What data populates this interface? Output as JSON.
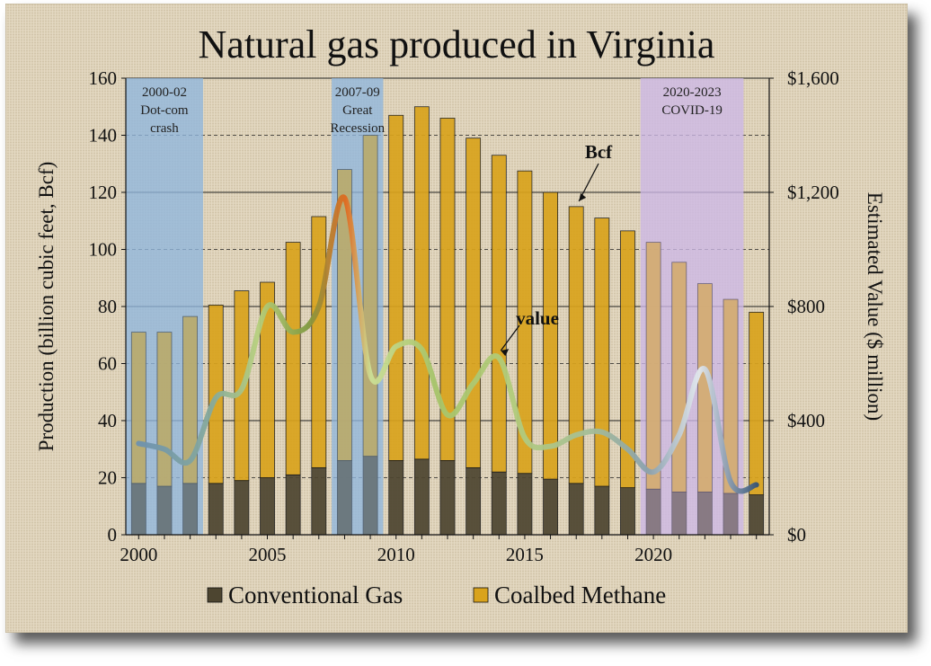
{
  "chart_data": {
    "type": "bar",
    "title": "Natural gas produced in Virginia",
    "ylabel": "Production (billion cubic feet, Bcf)",
    "y2label": "Estimated Value ($ million)",
    "ylim": [
      0,
      160
    ],
    "y2lim": [
      0,
      1600
    ],
    "yticks": [
      0,
      20,
      40,
      60,
      80,
      100,
      120,
      140,
      160
    ],
    "y2ticks": [
      "$0",
      "$400",
      "$800",
      "$1,200",
      "$1,600"
    ],
    "y2tick_values": [
      0,
      400,
      800,
      1200,
      1600
    ],
    "xticks": [
      2000,
      2005,
      2010,
      2015,
      2020
    ],
    "stacked": true,
    "categories": [
      2000,
      2001,
      2002,
      2003,
      2004,
      2005,
      2006,
      2007,
      2008,
      2009,
      2010,
      2011,
      2012,
      2013,
      2014,
      2015,
      2016,
      2017,
      2018,
      2019,
      2020,
      2021,
      2022,
      2023,
      2024
    ],
    "series": [
      {
        "name": "Conventional Gas",
        "color": "#4d4530",
        "values": [
          18,
          17,
          18,
          18,
          19,
          20,
          21,
          23.5,
          26,
          27.5,
          26,
          26.5,
          26,
          23.5,
          22,
          21.5,
          19.5,
          18,
          17,
          16.5,
          16,
          15,
          15,
          14.5,
          14
        ]
      },
      {
        "name": "Coalbed Methane",
        "color": "#d9a31c",
        "values": [
          53,
          54,
          58.5,
          62.5,
          66.5,
          68.5,
          81.5,
          88,
          102,
          112.5,
          121,
          123.5,
          120,
          115.5,
          111,
          106,
          100.5,
          97,
          94,
          90,
          86.5,
          80.5,
          73,
          68,
          64
        ]
      }
    ],
    "value_series": {
      "name": "value",
      "values": [
        320,
        300,
        260,
        480,
        510,
        800,
        710,
        800,
        1180,
        560,
        660,
        650,
        420,
        530,
        620,
        340,
        310,
        350,
        360,
        300,
        220,
        350,
        580,
        185,
        175
      ]
    },
    "annotations": [
      {
        "text": "Bcf"
      },
      {
        "text": "value"
      }
    ],
    "shaded_periods": [
      {
        "label": [
          "2000-02",
          "Dot-com",
          "crash"
        ],
        "start": 1999.5,
        "end": 2002.5,
        "color": "#8fb6dd"
      },
      {
        "label": [
          "2007-09",
          "Great",
          "Recession"
        ],
        "start": 2007.5,
        "end": 2009.5,
        "color": "#8fb6dd"
      },
      {
        "label": [
          "2020-2023",
          "COVID-19"
        ],
        "start": 2019.5,
        "end": 2023.5,
        "color": "#cdb8e6"
      }
    ],
    "legend": {
      "position": "bottom"
    },
    "grid": true
  }
}
